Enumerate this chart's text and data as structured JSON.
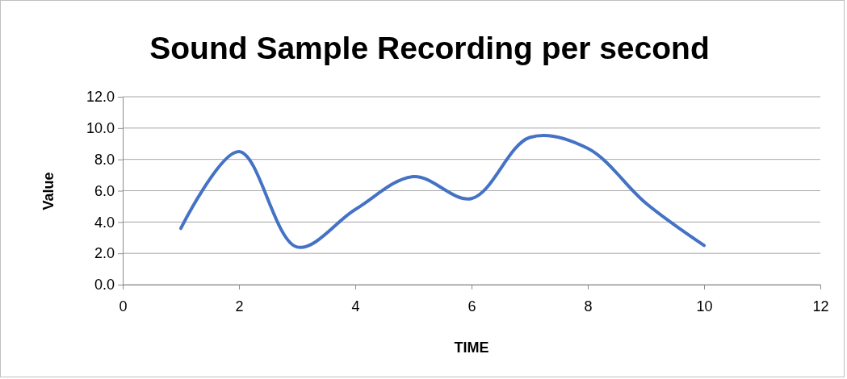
{
  "chart_data": {
    "type": "line",
    "title": "Sound Sample Recording per second",
    "xlabel": "TIME",
    "ylabel": "Value",
    "x": [
      1,
      2,
      3,
      4,
      5,
      6,
      7,
      8,
      9,
      10
    ],
    "series": [
      {
        "color": "#4472c4",
        "values": [
          3.6,
          8.5,
          2.4,
          4.8,
          6.9,
          5.5,
          9.4,
          8.7,
          5.2,
          2.5
        ]
      }
    ],
    "xlim": [
      0,
      12
    ],
    "xticks": [
      0,
      2,
      4,
      6,
      8,
      10,
      12
    ],
    "ylim": [
      0,
      12
    ],
    "yticks": [
      {
        "value": 0,
        "label": "0.0"
      },
      {
        "value": 2,
        "label": "2.0"
      },
      {
        "value": 4,
        "label": "4.0"
      },
      {
        "value": 6,
        "label": "6.0"
      },
      {
        "value": 8,
        "label": "8.0"
      },
      {
        "value": 10,
        "label": "10.0"
      },
      {
        "value": 12,
        "label": "12.0"
      }
    ],
    "grid": "y",
    "legend": false,
    "marker": "none",
    "line_style": "solid"
  }
}
